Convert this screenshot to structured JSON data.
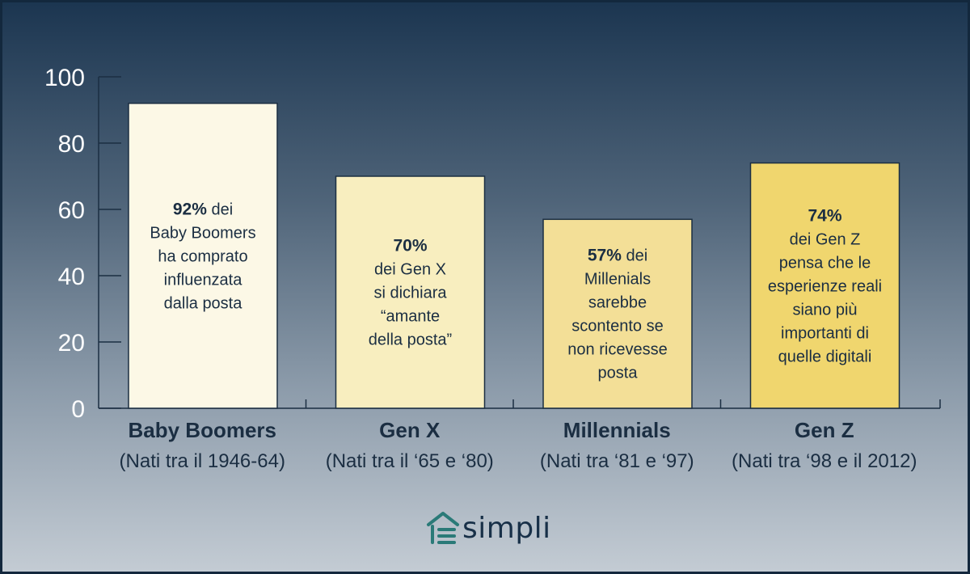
{
  "chart_data": {
    "type": "bar",
    "ylim": [
      0,
      100
    ],
    "yticks": [
      0,
      20,
      40,
      60,
      80,
      100
    ],
    "grid": false,
    "categories": [
      "Baby Boomers",
      "Gen X",
      "Millennials",
      "Gen Z"
    ],
    "category_sublabels": [
      "(Nati tra il 1946-64)",
      "(Nati tra il ‘65 e ‘80)",
      "(Nati tra ‘81 e ‘97)",
      "(Nati tra ‘98 e il 2012)"
    ],
    "values": [
      92,
      70,
      57,
      74
    ],
    "bar_colors": [
      "#fcf8e6",
      "#f8eebf",
      "#f3df97",
      "#f0d66e"
    ],
    "annotations": [
      {
        "bold": "92%",
        "after_bold": " dei",
        "lines": [
          "Baby Boomers",
          "ha comprato",
          "influenzata",
          "dalla posta"
        ]
      },
      {
        "bold": "70%",
        "after_bold": "",
        "lines": [
          "dei Gen X",
          "si dichiara",
          "“amante",
          "della posta”"
        ]
      },
      {
        "bold": "57%",
        "after_bold": " dei",
        "lines": [
          "Millenials",
          "sarebbe",
          "scontento se",
          "non ricevesse",
          "posta"
        ]
      },
      {
        "bold": "74%",
        "after_bold": "",
        "lines": [
          "dei Gen Z",
          "pensa che le",
          "esperienze reali",
          "siano più",
          "importanti di",
          "quelle digitali"
        ]
      }
    ]
  },
  "brand": {
    "logo_text": "simpli",
    "logo_icon": "house-icon",
    "logo_color": "#2a7a78",
    "text_color": "#183048"
  },
  "colors": {
    "axis": "#1b2e42",
    "label": "#1b2e42",
    "tick_label": "#ffffff"
  }
}
